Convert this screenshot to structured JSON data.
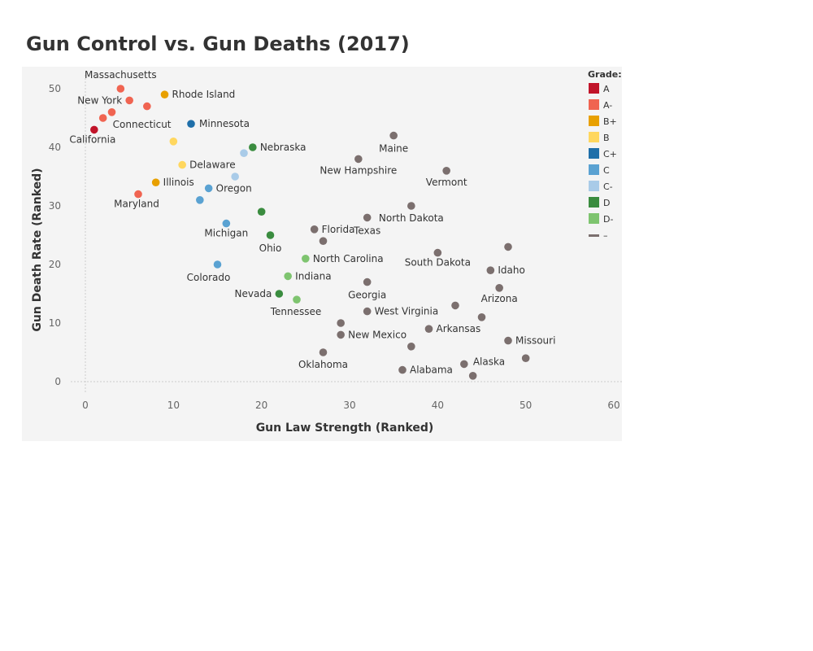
{
  "title": "Gun Control vs. Gun Deaths (2017)",
  "chart_data": {
    "type": "scatter",
    "title": "Gun Control vs. Gun Deaths (2017)",
    "xlabel": "Gun Law Strength (Ranked)",
    "ylabel": "Gun Death Rate (Ranked)",
    "xlim": [
      0,
      60
    ],
    "ylim": [
      0,
      50
    ],
    "xticks": [
      0,
      10,
      20,
      30,
      40,
      50,
      60
    ],
    "yticks": [
      0,
      10,
      20,
      30,
      40,
      50
    ],
    "grid": false,
    "legend": {
      "title": "Grade:",
      "placement": "right",
      "entries": [
        {
          "grade": "A",
          "color": "#c1142a"
        },
        {
          "grade": "A-",
          "color": "#f06451"
        },
        {
          "grade": "B+",
          "color": "#e8a000"
        },
        {
          "grade": "B",
          "color": "#ffd75f"
        },
        {
          "grade": "C+",
          "color": "#1f6fa9"
        },
        {
          "grade": "C",
          "color": "#5aa2d2"
        },
        {
          "grade": "C-",
          "color": "#a9cbe8"
        },
        {
          "grade": "D",
          "color": "#3a8c3f"
        },
        {
          "grade": "D-",
          "color": "#7ec46f"
        },
        {
          "grade": "–",
          "color": "#7b6f6e"
        }
      ]
    },
    "points": [
      {
        "x": 4,
        "y": 50,
        "grade": "A-",
        "label": "Massachusetts"
      },
      {
        "x": 5,
        "y": 48,
        "grade": "A-",
        "label": "New York"
      },
      {
        "x": 9,
        "y": 49,
        "grade": "B+",
        "label": "Rhode Island"
      },
      {
        "x": 7,
        "y": 47,
        "grade": "A-",
        "label": ""
      },
      {
        "x": 3,
        "y": 46,
        "grade": "A-",
        "label": ""
      },
      {
        "x": 2,
        "y": 45,
        "grade": "A-",
        "label": "Connecticut"
      },
      {
        "x": 1,
        "y": 43,
        "grade": "A",
        "label": "California"
      },
      {
        "x": 12,
        "y": 44,
        "grade": "C+",
        "label": "Minnesota"
      },
      {
        "x": 10,
        "y": 41,
        "grade": "B",
        "label": ""
      },
      {
        "x": 18,
        "y": 39,
        "grade": "C-",
        "label": ""
      },
      {
        "x": 19,
        "y": 40,
        "grade": "D",
        "label": "Nebraska"
      },
      {
        "x": 11,
        "y": 37,
        "grade": "B",
        "label": "Delaware"
      },
      {
        "x": 17,
        "y": 35,
        "grade": "C-",
        "label": ""
      },
      {
        "x": 14,
        "y": 33,
        "grade": "C",
        "label": "Oregon"
      },
      {
        "x": 8,
        "y": 34,
        "grade": "B+",
        "label": "Illinois"
      },
      {
        "x": 6,
        "y": 32,
        "grade": "A-",
        "label": "Maryland"
      },
      {
        "x": 13,
        "y": 31,
        "grade": "C",
        "label": ""
      },
      {
        "x": 20,
        "y": 29,
        "grade": "D",
        "label": ""
      },
      {
        "x": 16,
        "y": 27,
        "grade": "C",
        "label": "Michigan"
      },
      {
        "x": 21,
        "y": 25,
        "grade": "D",
        "label": "Ohio"
      },
      {
        "x": 15,
        "y": 20,
        "grade": "C",
        "label": "Colorado"
      },
      {
        "x": 25,
        "y": 21,
        "grade": "D-",
        "label": "North Carolina"
      },
      {
        "x": 23,
        "y": 18,
        "grade": "D-",
        "label": "Indiana"
      },
      {
        "x": 22,
        "y": 15,
        "grade": "D",
        "label": "Nevada"
      },
      {
        "x": 24,
        "y": 14,
        "grade": "D-",
        "label": "Tennessee"
      },
      {
        "x": 35,
        "y": 42,
        "grade": "–",
        "label": "Maine"
      },
      {
        "x": 31,
        "y": 38,
        "grade": "–",
        "label": "New Hampshire"
      },
      {
        "x": 41,
        "y": 36,
        "grade": "–",
        "label": "Vermont"
      },
      {
        "x": 37,
        "y": 30,
        "grade": "–",
        "label": "North Dakota"
      },
      {
        "x": 26,
        "y": 26,
        "grade": "–",
        "label": "Florida"
      },
      {
        "x": 32,
        "y": 28,
        "grade": "–",
        "label": "Texas"
      },
      {
        "x": 27,
        "y": 24,
        "grade": "–",
        "label": ""
      },
      {
        "x": 40,
        "y": 22,
        "grade": "–",
        "label": "South Dakota"
      },
      {
        "x": 48,
        "y": 23,
        "grade": "–",
        "label": ""
      },
      {
        "x": 46,
        "y": 19,
        "grade": "–",
        "label": "Idaho"
      },
      {
        "x": 32,
        "y": 17,
        "grade": "–",
        "label": "Georgia"
      },
      {
        "x": 47,
        "y": 16,
        "grade": "–",
        "label": "Arizona"
      },
      {
        "x": 42,
        "y": 13,
        "grade": "–",
        "label": ""
      },
      {
        "x": 32,
        "y": 12,
        "grade": "–",
        "label": "West Virginia"
      },
      {
        "x": 45,
        "y": 11,
        "grade": "–",
        "label": ""
      },
      {
        "x": 29,
        "y": 10,
        "grade": "–",
        "label": ""
      },
      {
        "x": 39,
        "y": 9,
        "grade": "–",
        "label": "Arkansas"
      },
      {
        "x": 29,
        "y": 8,
        "grade": "–",
        "label": "New Mexico"
      },
      {
        "x": 48,
        "y": 7,
        "grade": "–",
        "label": "Missouri"
      },
      {
        "x": 37,
        "y": 6,
        "grade": "–",
        "label": ""
      },
      {
        "x": 27,
        "y": 5,
        "grade": "–",
        "label": "Oklahoma"
      },
      {
        "x": 50,
        "y": 4,
        "grade": "–",
        "label": ""
      },
      {
        "x": 43,
        "y": 3,
        "grade": "–",
        "label": "Alaska"
      },
      {
        "x": 36,
        "y": 2,
        "grade": "–",
        "label": "Alabama"
      },
      {
        "x": 44,
        "y": 1,
        "grade": "–",
        "label": ""
      }
    ]
  }
}
